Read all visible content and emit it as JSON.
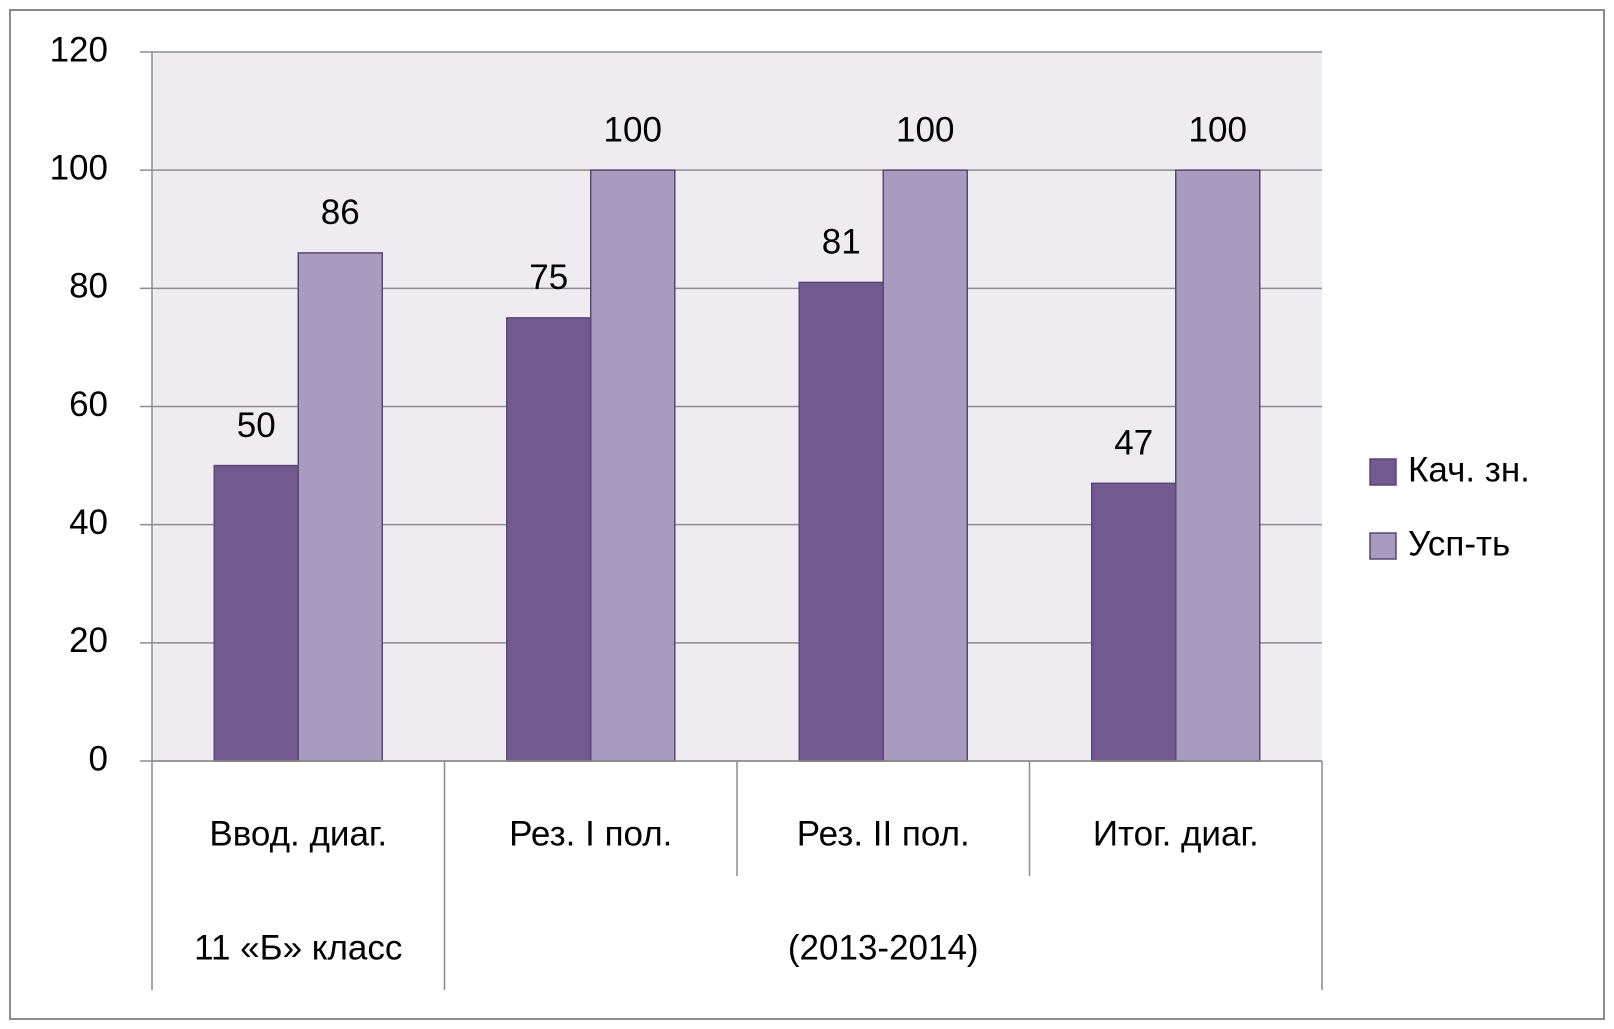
{
  "chart_data": {
    "type": "bar",
    "categories": [
      "Ввод. диаг.",
      "Рез. I пол.",
      "Рез. II пол.",
      "Итог. диаг."
    ],
    "group_labels": [
      "11 «Б»  класс",
      "(2013-2014)",
      null,
      null
    ],
    "series": [
      {
        "name": "Кач. зн.",
        "color": "#725a90",
        "values": [
          50,
          75,
          81,
          47
        ]
      },
      {
        "name": "Усп-ть",
        "color": "#a99bc0",
        "values": [
          86,
          100,
          100,
          100
        ]
      }
    ],
    "ylim": [
      0,
      120
    ],
    "yticks": [
      0,
      20,
      40,
      60,
      80,
      100,
      120
    ],
    "grid": true,
    "legend": "right"
  }
}
